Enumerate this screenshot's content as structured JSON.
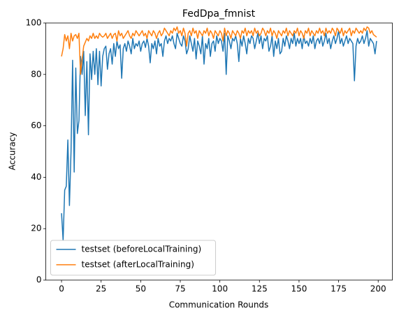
{
  "chart_data": {
    "type": "line",
    "title": "FedDpa_fmnist",
    "xlabel": "Communication Rounds",
    "ylabel": "Accuracy",
    "x": [
      0,
      1,
      2,
      3,
      4,
      5,
      6,
      7,
      8,
      9,
      10,
      11,
      12,
      13,
      14,
      15,
      16,
      17,
      18,
      19,
      20,
      21,
      22,
      23,
      24,
      25,
      26,
      27,
      28,
      29,
      30,
      31,
      32,
      33,
      34,
      35,
      36,
      37,
      38,
      39,
      40,
      41,
      42,
      43,
      44,
      45,
      46,
      47,
      48,
      49,
      50,
      51,
      52,
      53,
      54,
      55,
      56,
      57,
      58,
      59,
      60,
      61,
      62,
      63,
      64,
      65,
      66,
      67,
      68,
      69,
      70,
      71,
      72,
      73,
      74,
      75,
      76,
      77,
      78,
      79,
      80,
      81,
      82,
      83,
      84,
      85,
      86,
      87,
      88,
      89,
      90,
      91,
      92,
      93,
      94,
      95,
      96,
      97,
      98,
      99,
      100,
      101,
      102,
      103,
      104,
      105,
      106,
      107,
      108,
      109,
      110,
      111,
      112,
      113,
      114,
      115,
      116,
      117,
      118,
      119,
      120,
      121,
      122,
      123,
      124,
      125,
      126,
      127,
      128,
      129,
      130,
      131,
      132,
      133,
      134,
      135,
      136,
      137,
      138,
      139,
      140,
      141,
      142,
      143,
      144,
      145,
      146,
      147,
      148,
      149,
      150,
      151,
      152,
      153,
      154,
      155,
      156,
      157,
      158,
      159,
      160,
      161,
      162,
      163,
      164,
      165,
      166,
      167,
      168,
      169,
      170,
      171,
      172,
      173,
      174,
      175,
      176,
      177,
      178,
      179,
      180,
      181,
      182,
      183,
      184,
      185,
      186,
      187,
      188,
      189,
      190,
      191,
      192,
      193,
      194,
      195,
      196,
      197,
      198,
      199
    ],
    "series": [
      {
        "name": "testset (beforeLocalTraining)",
        "color": "#1f77b4",
        "values": [
          26,
          15.5,
          35,
          36.5,
          54.5,
          29,
          50,
          85.5,
          42,
          82.5,
          57,
          62,
          87,
          80,
          89,
          64,
          85,
          56.5,
          88,
          78,
          89,
          80,
          90,
          76,
          89,
          75.5,
          87,
          90,
          91,
          82,
          88,
          90,
          84,
          92,
          87,
          93,
          90,
          91.5,
          78.5,
          90,
          92,
          89,
          93,
          91,
          88,
          94,
          90,
          92,
          91,
          93,
          89,
          92,
          93,
          90.5,
          94,
          91,
          84.5,
          92,
          90,
          93,
          88,
          94,
          91,
          92,
          87,
          93,
          95,
          92,
          94,
          93,
          95,
          92,
          90,
          96,
          94,
          92,
          91,
          95,
          93,
          88,
          90,
          95,
          92,
          89,
          94,
          86,
          93,
          91,
          88,
          95,
          84,
          92,
          90,
          94,
          87,
          92,
          93,
          89,
          95,
          92,
          94,
          93,
          89,
          96,
          80,
          95,
          93,
          90,
          94,
          93,
          95,
          92,
          85,
          94,
          91,
          95,
          92,
          88,
          94,
          92,
          95,
          94,
          90,
          93,
          96,
          92,
          95,
          90,
          94,
          93,
          95,
          89,
          91,
          95,
          87,
          93,
          90,
          94,
          88,
          89,
          94,
          91,
          95,
          93,
          90,
          94,
          92,
          96,
          91,
          94,
          92,
          94,
          90,
          95,
          92,
          93,
          91,
          94,
          92,
          95,
          90,
          93,
          94,
          92,
          95,
          91,
          93,
          96,
          92,
          94,
          90,
          93,
          95,
          92,
          94,
          97,
          92,
          94,
          91,
          93,
          95,
          92,
          94,
          93,
          92,
          77.5,
          91,
          94,
          92,
          93,
          95,
          92,
          94,
          97,
          91,
          94,
          93,
          92,
          88,
          93
        ]
      },
      {
        "name": "testset (afterLocalTraining)",
        "color": "#ff7f0e",
        "values": [
          87,
          90,
          95.5,
          93,
          95,
          90,
          96,
          93,
          95,
          95.5,
          94,
          96,
          80,
          86,
          91,
          92.5,
          94,
          93,
          95,
          94,
          96,
          94,
          95,
          94,
          96,
          95,
          94.5,
          95,
          96,
          94,
          95,
          96,
          94,
          95.5,
          96,
          93,
          97,
          95,
          96,
          94,
          95,
          96,
          97,
          95,
          94,
          96,
          95,
          97,
          96,
          95,
          96,
          97,
          95,
          96,
          94,
          97,
          96,
          95,
          97,
          96,
          94,
          96,
          97,
          95,
          96,
          98,
          97,
          96,
          95,
          97,
          96,
          98,
          97,
          98.5,
          96,
          97,
          95,
          98,
          96,
          91,
          96,
          97,
          95,
          98,
          96,
          97,
          94,
          97,
          96,
          95,
          97,
          96,
          98,
          95,
          97,
          96,
          94,
          97,
          96,
          95,
          97,
          96,
          93,
          98,
          95,
          97,
          96,
          94,
          97,
          96,
          95,
          97,
          96,
          94,
          97,
          96,
          98,
          95,
          97,
          96,
          97,
          95,
          98,
          96,
          97,
          95,
          96,
          98,
          97,
          95,
          97,
          96,
          98,
          95,
          97,
          96,
          94,
          97,
          96,
          95,
          97,
          96,
          98,
          95,
          97,
          96,
          95,
          97,
          96,
          98,
          95,
          97,
          96,
          94,
          97,
          96,
          98,
          95,
          97,
          96,
          95,
          97,
          96,
          98,
          96,
          97,
          95,
          98,
          96,
          97,
          96,
          98,
          97,
          95,
          98,
          97,
          96,
          98,
          95,
          97,
          96,
          97,
          98,
          95,
          97,
          96,
          98,
          97,
          96,
          97,
          96,
          98,
          97,
          98.5,
          98,
          96,
          97,
          95.5,
          95,
          94.5
        ]
      }
    ],
    "xlim": [
      -9.95,
      208.95
    ],
    "xticks": [
      0,
      25,
      50,
      75,
      100,
      125,
      150,
      175,
      200
    ],
    "ylim": [
      0,
      100
    ],
    "yticks": [
      0,
      20,
      40,
      60,
      80,
      100
    ],
    "legend": "lower left"
  }
}
